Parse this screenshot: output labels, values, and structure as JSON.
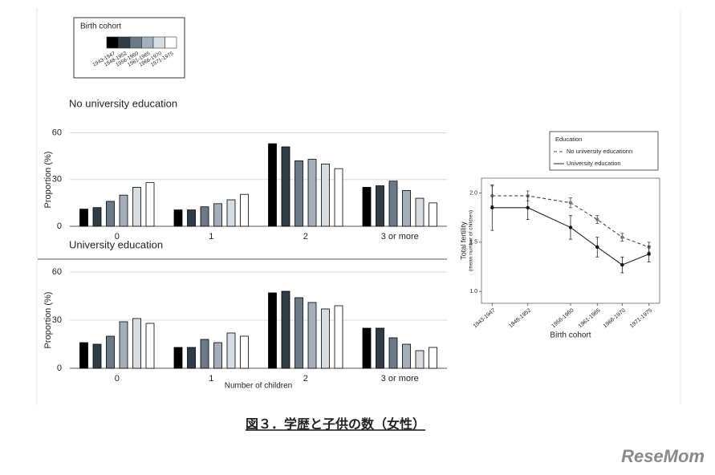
{
  "chart_data": [
    {
      "type": "bar",
      "title": "No university education",
      "ylabel": "Proportion (%)",
      "legend_title": "Birth cohort",
      "categories": [
        "0",
        "1",
        "2",
        "3 or more"
      ],
      "series": [
        {
          "name": "1943-1947",
          "color": "#000000",
          "values": [
            11,
            10.5,
            53,
            25
          ]
        },
        {
          "name": "1948-1952",
          "color": "#2f3d48",
          "values": [
            12,
            10.5,
            51,
            26
          ]
        },
        {
          "name": "1956-1960",
          "color": "#6b7a88",
          "values": [
            16,
            12.5,
            42,
            29
          ]
        },
        {
          "name": "1961-1965",
          "color": "#a3b0bc",
          "values": [
            20,
            14.5,
            43,
            23
          ]
        },
        {
          "name": "1966-1970",
          "color": "#d6dde3",
          "values": [
            25,
            17,
            40,
            18
          ]
        },
        {
          "name": "1971-1975",
          "color": "#ffffff",
          "values": [
            28,
            20.5,
            37,
            15
          ]
        }
      ],
      "ylim": [
        0,
        68
      ],
      "yticks": [
        0,
        30,
        60
      ],
      "grid": true
    },
    {
      "type": "bar",
      "title": "University education",
      "ylabel": "Proportion (%)",
      "xlabel": "Number of children",
      "categories": [
        "0",
        "1",
        "2",
        "3 or more"
      ],
      "series": [
        {
          "color": "#000000",
          "values": [
            16,
            13,
            47,
            25
          ]
        },
        {
          "color": "#2f3d48",
          "values": [
            15,
            13,
            48,
            25
          ]
        },
        {
          "color": "#6b7a88",
          "values": [
            20,
            18,
            44,
            19
          ]
        },
        {
          "color": "#a3b0bc",
          "values": [
            29,
            16,
            41,
            15
          ]
        },
        {
          "color": "#d6dde3",
          "values": [
            31,
            22,
            37,
            11
          ]
        },
        {
          "color": "#ffffff",
          "values": [
            28,
            20,
            39,
            13
          ]
        }
      ],
      "ylim": [
        0,
        68
      ],
      "yticks": [
        0,
        30,
        60
      ],
      "grid": true
    },
    {
      "type": "line",
      "ylabel": "Total fertility",
      "ylabel_sub": "(mean number of children)",
      "xlabel": "Birth cohort",
      "legend_title": "Education",
      "categories": [
        "1943-1947",
        "1948-1952",
        "1956-1960",
        "1961-1965",
        "1966-1970",
        "1971-1975"
      ],
      "series": [
        {
          "name": "No university educationn",
          "color": "#444444",
          "dash": true,
          "values": [
            1.97,
            1.97,
            1.9,
            1.73,
            1.55,
            1.45
          ],
          "errors": [
            0.1,
            0.05,
            0.05,
            0.04,
            0.04,
            0.05
          ]
        },
        {
          "name": "University education",
          "color": "#222222",
          "dash": false,
          "values": [
            1.85,
            1.85,
            1.65,
            1.45,
            1.27,
            1.38
          ],
          "errors": [
            0.23,
            0.12,
            0.12,
            0.1,
            0.08,
            0.08
          ]
        }
      ],
      "ylim": [
        0.88,
        2.15
      ],
      "yticks": [
        {
          "value": 1,
          "label": "1.0"
        },
        {
          "value": 1.5,
          "label": "1.5"
        },
        {
          "value": 2,
          "label": "2.0"
        }
      ],
      "grid": false
    }
  ],
  "caption": "図３．学歴と子供の数（女性）",
  "watermark": "ReseMom"
}
